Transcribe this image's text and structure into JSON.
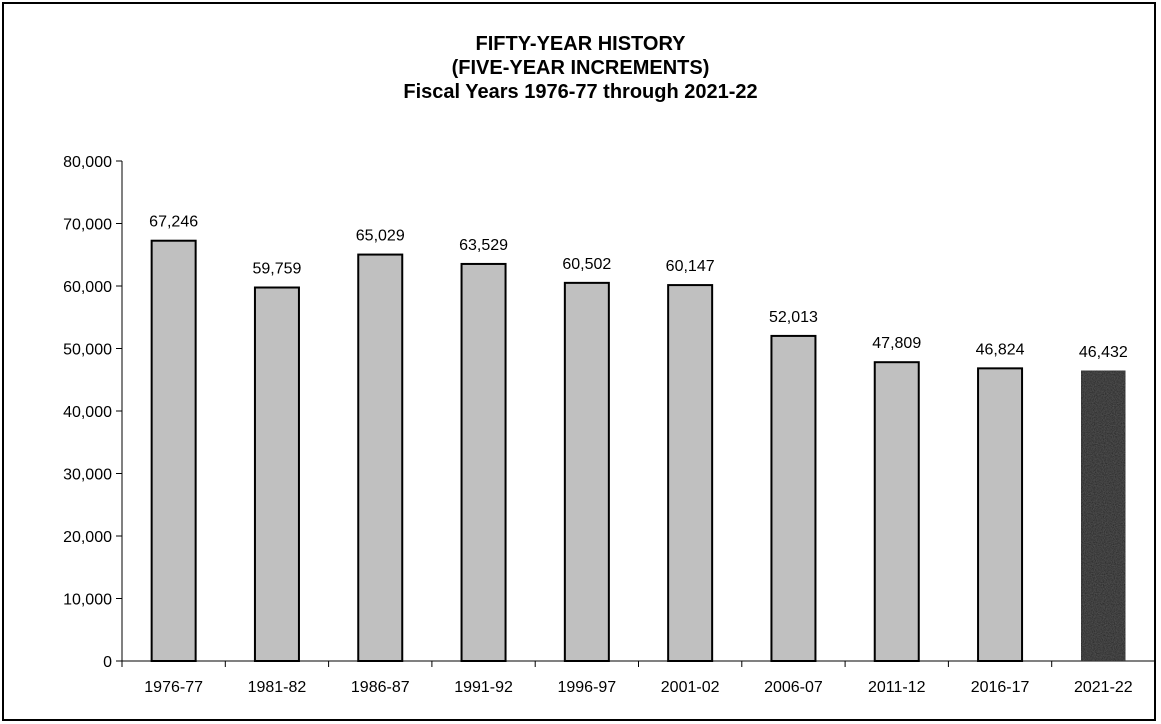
{
  "chart_data": {
    "type": "bar",
    "title": [
      "FIFTY-YEAR HISTORY",
      "(FIVE-YEAR INCREMENTS)",
      "Fiscal Years 1976-77 through 2021-22"
    ],
    "categories": [
      "1976-77",
      "1981-82",
      "1986-87",
      "1991-92",
      "1996-97",
      "2001-02",
      "2006-07",
      "2011-12",
      "2016-17",
      "2021-22"
    ],
    "values": [
      67246,
      59759,
      65029,
      63529,
      60502,
      60147,
      52013,
      47809,
      46824,
      46432
    ],
    "data_labels": [
      "67,246",
      "59,759",
      "65,029",
      "63,529",
      "60,502",
      "60,147",
      "52,013",
      "47,809",
      "46,824",
      "46,432"
    ],
    "y_ticks": [
      "0",
      "10,000",
      "20,000",
      "30,000",
      "40,000",
      "50,000",
      "60,000",
      "70,000",
      "80,000"
    ],
    "ylim": [
      0,
      80000
    ],
    "xlabel": "",
    "ylabel": "",
    "grid": false,
    "colors": {
      "bar": "#c0c0c0",
      "highlight_bar": "#1e1e1e",
      "outline": "#000000"
    },
    "highlight_index": 9
  }
}
